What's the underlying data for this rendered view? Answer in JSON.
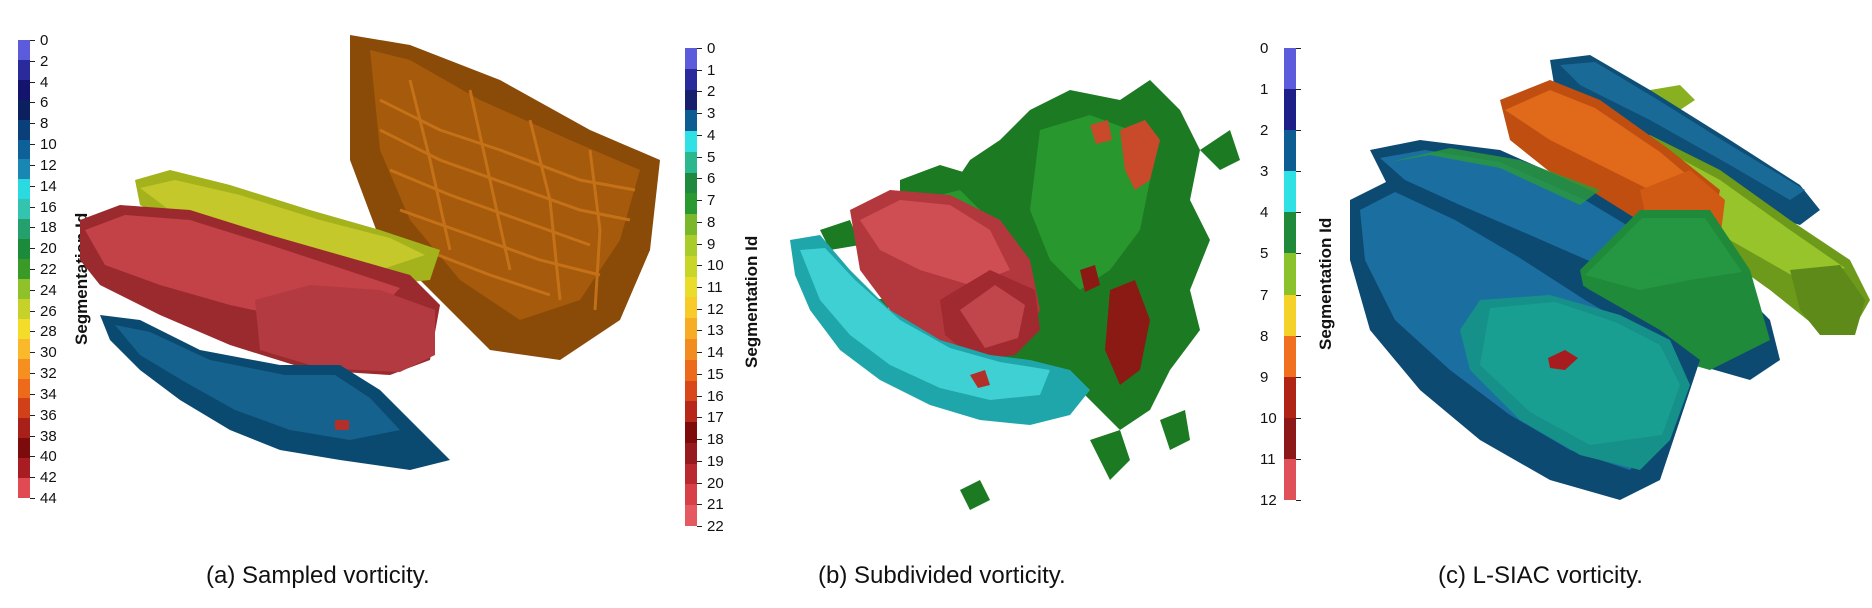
{
  "figure": {
    "panels": [
      {
        "caption": "(a) Sampled vorticity.",
        "colorbar": {
          "title": "Segmentation Id",
          "ticks": [
            "0",
            "2",
            "4",
            "6",
            "8",
            "10",
            "12",
            "14",
            "16",
            "18",
            "20",
            "22",
            "24",
            "26",
            "28",
            "30",
            "32",
            "34",
            "36",
            "38",
            "40",
            "42",
            "44"
          ],
          "colors": [
            "#5b5bdc",
            "#2a2a9c",
            "#14146e",
            "#0c2060",
            "#0b3f7a",
            "#0d6098",
            "#1a86b4",
            "#2bd9e0",
            "#33c4b0",
            "#23a06c",
            "#1b8a3a",
            "#3a9a28",
            "#8fc12a",
            "#c6d22a",
            "#f4dc2a",
            "#f9b92a",
            "#f59020",
            "#ec6a1a",
            "#d2401a",
            "#a8201a",
            "#7c0c0c",
            "#a81c24",
            "#e04a52"
          ]
        }
      },
      {
        "caption": "(b) Subdivided vorticity.",
        "colorbar": {
          "title": "Segmentation Id",
          "ticks": [
            "0",
            "1",
            "2",
            "3",
            "4",
            "5",
            "6",
            "7",
            "8",
            "9",
            "10",
            "11",
            "12",
            "13",
            "14",
            "15",
            "16",
            "17",
            "18",
            "19",
            "20",
            "21",
            "22"
          ],
          "colors": [
            "#5b5bdc",
            "#2a2a9c",
            "#18206e",
            "#0d5d92",
            "#2fe0e4",
            "#2bb88e",
            "#1f8a3e",
            "#2a9a30",
            "#79b82a",
            "#a9cc2a",
            "#c8d62a",
            "#eadc2a",
            "#f8ca2a",
            "#f8ac24",
            "#f38c20",
            "#ec6a1a",
            "#d8481a",
            "#b8281a",
            "#7e0a0a",
            "#961a1e",
            "#b82a30",
            "#d84048",
            "#e45a60"
          ]
        }
      },
      {
        "caption": "(c) L-SIAC vorticity.",
        "colorbar": {
          "title": "Segmentation Id",
          "ticks": [
            "0",
            "1",
            "2",
            "3",
            "4",
            "5",
            "7",
            "8",
            "9",
            "10",
            "11",
            "12"
          ],
          "colors": [
            "#5b5bdc",
            "#1e1e88",
            "#0d5d92",
            "#2fe0e4",
            "#1e8a3a",
            "#89c22a",
            "#f5d22a",
            "#f07020",
            "#b02416",
            "#8c1818",
            "#e05058"
          ]
        }
      }
    ]
  }
}
